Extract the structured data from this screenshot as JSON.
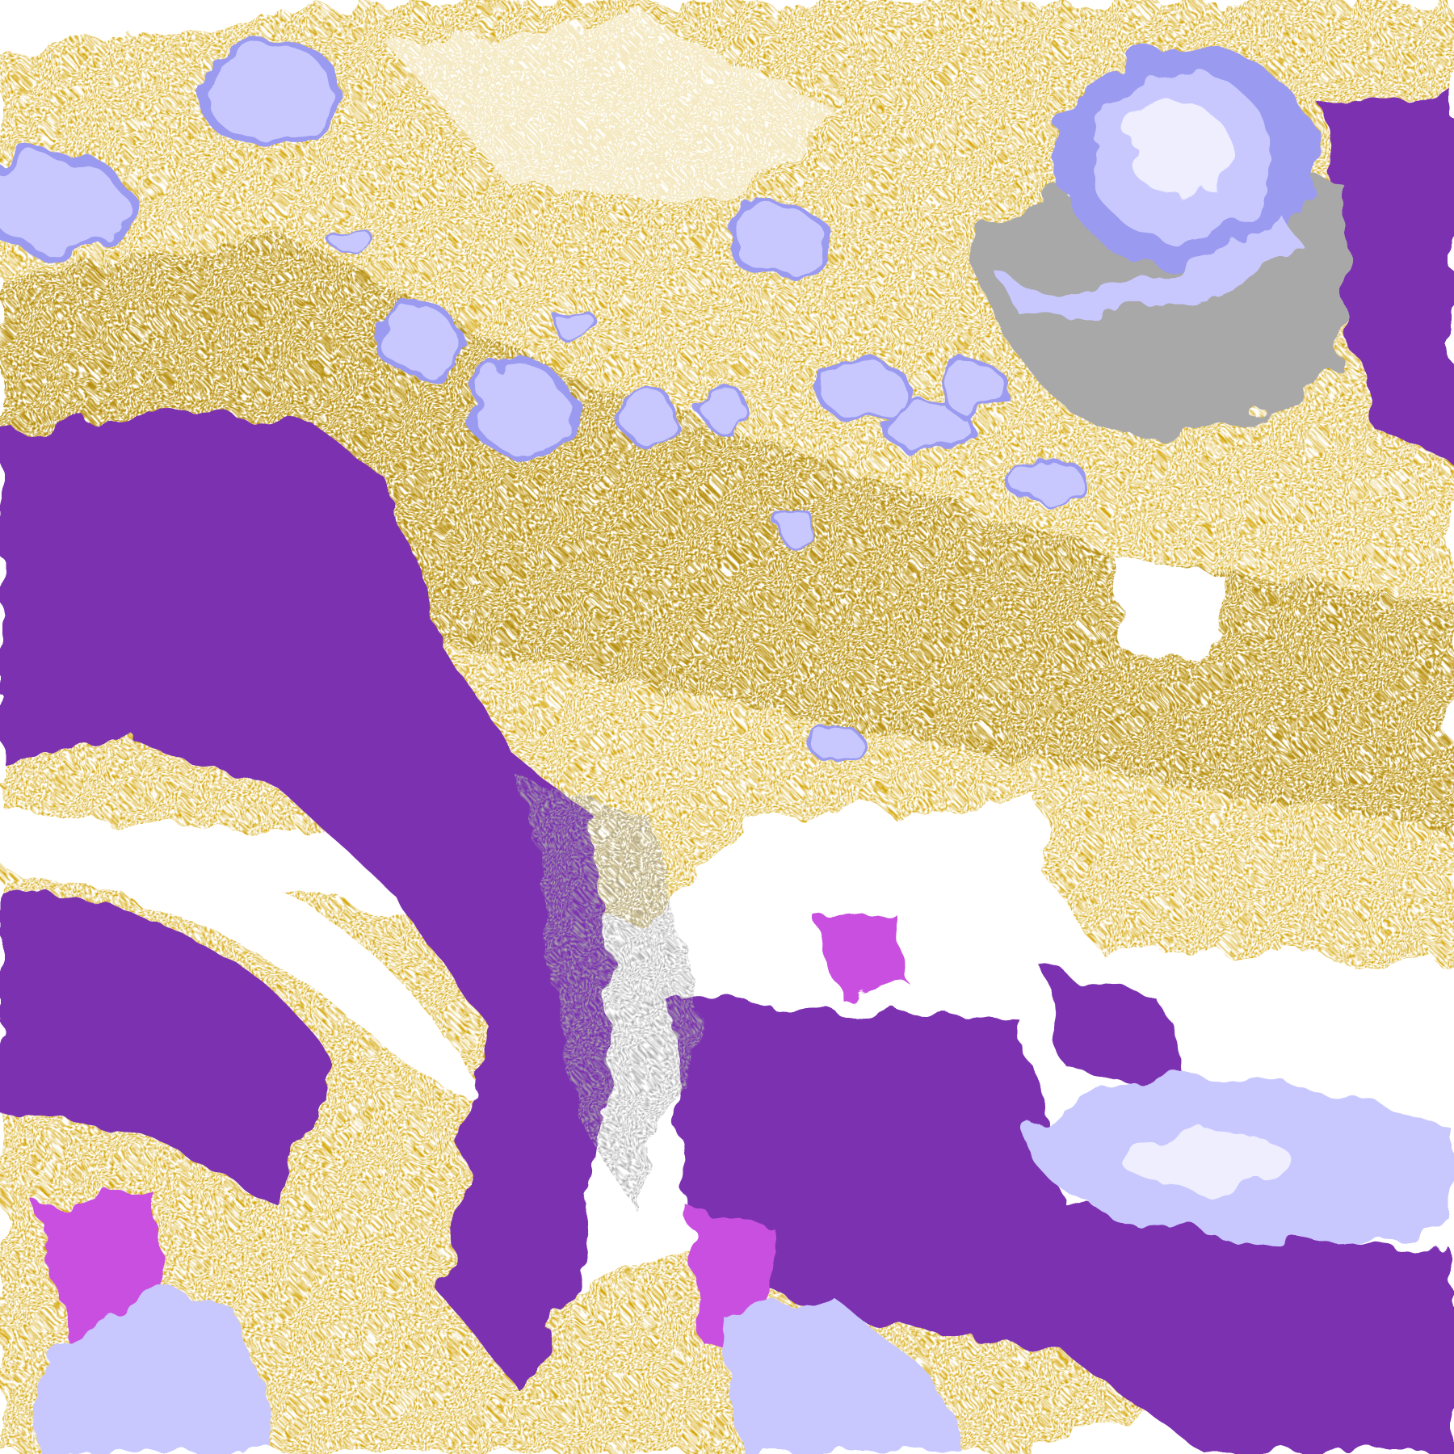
{
  "image": {
    "kind": "false-color satellite imagery",
    "palette": {
      "clear": "#ffffff",
      "gold": "#d4a400",
      "dark_gold": "#b08a10",
      "purple": "#7b30b0",
      "magenta": "#c850e0",
      "lavender": "#c8c8ff",
      "pale_lavender": "#eeeeff",
      "periwinkle": "#9a9af0",
      "gray": "#a8a8a8"
    },
    "features": [
      "hurricane-spiral-top-right",
      "storm-system-bottom-right",
      "storm-system-bottom-left",
      "convective-clouds-center"
    ]
  }
}
